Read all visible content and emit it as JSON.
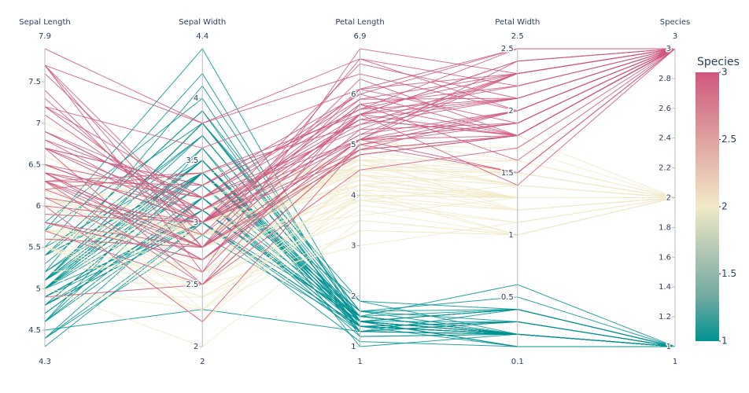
{
  "chart_data": {
    "type": "parcoords",
    "dimensions": [
      {
        "label": "Sepal Length",
        "range": [
          4.3,
          7.9
        ],
        "ticks": [
          4.5,
          5,
          5.5,
          6,
          6.5,
          7,
          7.5
        ],
        "values": [
          5.1,
          4.9,
          4.7,
          4.6,
          5,
          5.4,
          4.6,
          5,
          4.4,
          4.9,
          5.4,
          4.8,
          4.8,
          4.3,
          5.8,
          5.7,
          5.4,
          5.1,
          5.7,
          5.1,
          5.4,
          5.1,
          4.6,
          5.1,
          4.8,
          5,
          5,
          5.2,
          5.2,
          4.7,
          4.8,
          5.4,
          5.2,
          5.5,
          4.9,
          5,
          5.5,
          4.9,
          4.4,
          5.1,
          5,
          4.5,
          4.4,
          5,
          5.1,
          4.8,
          5.1,
          4.6,
          5.3,
          5,
          7,
          6.4,
          6.9,
          5.5,
          6.5,
          5.7,
          6.3,
          4.9,
          6.6,
          5.2,
          5,
          5.9,
          6,
          6.1,
          5.6,
          6.7,
          5.6,
          5.8,
          6.2,
          5.6,
          5.9,
          6.1,
          6.3,
          6.1,
          6.4,
          6.6,
          6.8,
          6.7,
          6,
          5.7,
          5.5,
          5.5,
          5.8,
          6,
          5.4,
          6,
          6.7,
          6.3,
          5.6,
          5.5,
          5.5,
          6.1,
          5.8,
          5,
          5.6,
          5.7,
          5.7,
          6.2,
          5.1,
          5.7,
          6.3,
          5.8,
          7.1,
          6.3,
          6.5,
          7.6,
          4.9,
          7.3,
          6.7,
          7.2,
          6.5,
          6.4,
          6.8,
          5.7,
          5.8,
          6.4,
          6.5,
          7.7,
          7.7,
          6,
          6.9,
          5.6,
          7.7,
          6.3,
          6.7,
          7.2,
          6.2,
          6.1,
          6.4,
          7.2,
          7.4,
          7.9,
          6.4,
          6.3,
          6.1,
          7.7,
          6.3,
          6.4,
          6,
          6.9,
          6.7,
          6.9,
          5.8,
          6.8,
          6.7,
          6.7,
          6.3,
          6.5,
          6.2,
          5.9
        ]
      },
      {
        "label": "Sepal Width",
        "range": [
          2,
          4.4
        ],
        "ticks": [
          2,
          2.5,
          3,
          3.5,
          4
        ],
        "values": [
          3.5,
          3,
          3.2,
          3.1,
          3.6,
          3.9,
          3.4,
          3.4,
          2.9,
          3.1,
          3.7,
          3.4,
          3,
          3,
          4,
          4.4,
          3.9,
          3.5,
          3.8,
          3.8,
          3.4,
          3.7,
          3.6,
          3.3,
          3.4,
          3,
          3.4,
          3.5,
          3.4,
          3.2,
          3.1,
          3.4,
          4.1,
          4.2,
          3.1,
          3.2,
          3.5,
          3.1,
          3,
          3.4,
          3.5,
          2.3,
          3.2,
          3.5,
          3.8,
          3,
          3.8,
          3.2,
          3.7,
          3.3,
          3.2,
          3.2,
          3.1,
          2.3,
          2.8,
          2.8,
          3.3,
          2.4,
          2.9,
          2.7,
          2,
          3,
          2.2,
          2.9,
          2.9,
          3.1,
          3,
          2.7,
          2.2,
          2.5,
          3.2,
          2.8,
          2.5,
          2.8,
          2.9,
          3,
          2.8,
          3,
          2.9,
          2.6,
          2.4,
          2.4,
          2.7,
          2.7,
          3,
          3.4,
          3.1,
          2.3,
          3,
          2.5,
          2.6,
          3,
          2.6,
          2.3,
          2.7,
          3,
          2.9,
          2.9,
          2.5,
          2.8,
          3.3,
          2.7,
          3,
          2.9,
          3,
          3,
          2.5,
          2.9,
          2.5,
          3.6,
          3.2,
          2.7,
          3,
          2.5,
          2.8,
          3.2,
          3,
          3.8,
          2.6,
          2.2,
          3.2,
          2.8,
          2.8,
          2.7,
          3.3,
          3.2,
          2.8,
          3,
          2.8,
          3,
          2.8,
          3.8,
          2.8,
          2.8,
          2.6,
          3,
          3.4,
          3.1,
          3,
          3.1,
          3.1,
          3.1,
          2.7,
          3.2,
          3.3,
          3,
          2.5,
          3,
          3.4,
          3
        ]
      },
      {
        "label": "Petal Length",
        "range": [
          1,
          6.9
        ],
        "ticks": [
          1,
          2,
          3,
          4,
          5,
          6
        ],
        "values": [
          1.4,
          1.4,
          1.3,
          1.5,
          1.4,
          1.7,
          1.4,
          1.5,
          1.4,
          1.5,
          1.5,
          1.6,
          1.4,
          1.1,
          1.2,
          1.5,
          1.3,
          1.4,
          1.7,
          1.5,
          1.7,
          1.5,
          1,
          1.7,
          1.9,
          1.6,
          1.6,
          1.5,
          1.4,
          1.6,
          1.6,
          1.5,
          1.5,
          1.4,
          1.5,
          1.2,
          1.3,
          1.5,
          1.3,
          1.5,
          1.3,
          1.3,
          1.3,
          1.6,
          1.9,
          1.4,
          1.6,
          1.4,
          1.5,
          1.4,
          4.7,
          4.5,
          4.9,
          4,
          4.6,
          4.5,
          4.7,
          3.3,
          4.6,
          3.9,
          3.5,
          4.2,
          4,
          4.7,
          3.6,
          4.4,
          4.5,
          4.1,
          4.5,
          3.9,
          4.8,
          4,
          4.9,
          4.7,
          4.3,
          4.4,
          4.8,
          5,
          4.5,
          3.5,
          3.8,
          3.7,
          3.9,
          5.1,
          4.5,
          4.5,
          4.7,
          4.4,
          4.1,
          4,
          4.4,
          4.6,
          4,
          3.3,
          4.2,
          4.2,
          4.2,
          4.3,
          3,
          4.1,
          6,
          5.1,
          5.9,
          5.6,
          5.8,
          6.6,
          4.5,
          6.3,
          5.8,
          6.1,
          5.1,
          5.3,
          5.5,
          5,
          5.1,
          5.3,
          5.5,
          6.7,
          6.9,
          5,
          5.7,
          4.9,
          6.7,
          4.9,
          5.7,
          6,
          4.8,
          4.9,
          5.6,
          5.8,
          6.1,
          6.4,
          5.6,
          5.1,
          5.6,
          6.1,
          5.6,
          5.5,
          4.8,
          5.4,
          5.6,
          5.1,
          5.1,
          5.9,
          5.7,
          5.2,
          5,
          5.2,
          5.4,
          5.1
        ]
      },
      {
        "label": "Petal Width",
        "range": [
          0.1,
          2.5
        ],
        "ticks": [
          0.5,
          1,
          1.5,
          2,
          2.5
        ],
        "values": [
          0.2,
          0.2,
          0.2,
          0.2,
          0.2,
          0.4,
          0.3,
          0.2,
          0.2,
          0.1,
          0.2,
          0.2,
          0.1,
          0.1,
          0.2,
          0.4,
          0.4,
          0.3,
          0.3,
          0.3,
          0.2,
          0.4,
          0.2,
          0.5,
          0.2,
          0.2,
          0.4,
          0.2,
          0.2,
          0.2,
          0.2,
          0.4,
          0.1,
          0.2,
          0.1,
          0.2,
          0.2,
          0.1,
          0.2,
          0.2,
          0.3,
          0.3,
          0.2,
          0.6,
          0.4,
          0.3,
          0.2,
          0.2,
          0.2,
          0.2,
          1.4,
          1.5,
          1.5,
          1.3,
          1.5,
          1.3,
          1.6,
          1,
          1.3,
          1.4,
          1,
          1.5,
          1,
          1.4,
          1.3,
          1.4,
          1.5,
          1,
          1.5,
          1.1,
          1.8,
          1.3,
          1.5,
          1.2,
          1.3,
          1.4,
          1.4,
          1.7,
          1.5,
          1,
          1.1,
          1,
          1.2,
          1.6,
          1.5,
          1.6,
          1.5,
          1.3,
          1.3,
          1.3,
          1.2,
          1.4,
          1.2,
          1,
          1.3,
          1.2,
          1.3,
          1.3,
          1.1,
          1.3,
          2.5,
          1.9,
          2.1,
          1.8,
          2.2,
          2.1,
          1.7,
          1.8,
          1.8,
          2.5,
          2,
          1.9,
          2.1,
          2,
          2.4,
          2.3,
          1.8,
          2.2,
          2.3,
          1.5,
          2.3,
          2,
          2,
          1.8,
          2.1,
          1.8,
          1.8,
          1.8,
          2.1,
          1.6,
          1.9,
          2,
          2.2,
          1.5,
          1.4,
          2.3,
          2.4,
          1.8,
          1.8,
          2.1,
          2.4,
          2.3,
          1.9,
          2.3,
          2.5,
          2.3,
          1.9,
          2,
          2.3,
          1.8
        ]
      },
      {
        "label": "Species",
        "range": [
          1,
          3
        ],
        "ticks": [
          1,
          1.2,
          1.4,
          1.6,
          1.8,
          2,
          2.2,
          2.4,
          2.6,
          2.8,
          3
        ],
        "values": [
          1,
          1,
          1,
          1,
          1,
          1,
          1,
          1,
          1,
          1,
          1,
          1,
          1,
          1,
          1,
          1,
          1,
          1,
          1,
          1,
          1,
          1,
          1,
          1,
          1,
          1,
          1,
          1,
          1,
          1,
          1,
          1,
          1,
          1,
          1,
          1,
          1,
          1,
          1,
          1,
          1,
          1,
          1,
          1,
          1,
          1,
          1,
          1,
          1,
          1,
          2,
          2,
          2,
          2,
          2,
          2,
          2,
          2,
          2,
          2,
          2,
          2,
          2,
          2,
          2,
          2,
          2,
          2,
          2,
          2,
          2,
          2,
          2,
          2,
          2,
          2,
          2,
          2,
          2,
          2,
          2,
          2,
          2,
          2,
          2,
          2,
          2,
          2,
          2,
          2,
          2,
          2,
          2,
          2,
          2,
          2,
          2,
          2,
          2,
          2,
          3,
          3,
          3,
          3,
          3,
          3,
          3,
          3,
          3,
          3,
          3,
          3,
          3,
          3,
          3,
          3,
          3,
          3,
          3,
          3,
          3,
          3,
          3,
          3,
          3,
          3,
          3,
          3,
          3,
          3,
          3,
          3,
          3,
          3,
          3,
          3,
          3,
          3,
          3,
          3,
          3,
          3,
          3,
          3,
          3,
          3,
          3,
          3,
          3,
          3
        ]
      }
    ],
    "colorbar": {
      "title": "Species",
      "range": [
        1,
        3
      ],
      "ticks": [
        1,
        1.5,
        2,
        2.5,
        3
      ],
      "colorscale": [
        "#009392",
        "#72aaa1",
        "#b1c7b3",
        "#f1eac8",
        "#e5b9ad",
        "#d98994",
        "#d0587e"
      ]
    }
  }
}
